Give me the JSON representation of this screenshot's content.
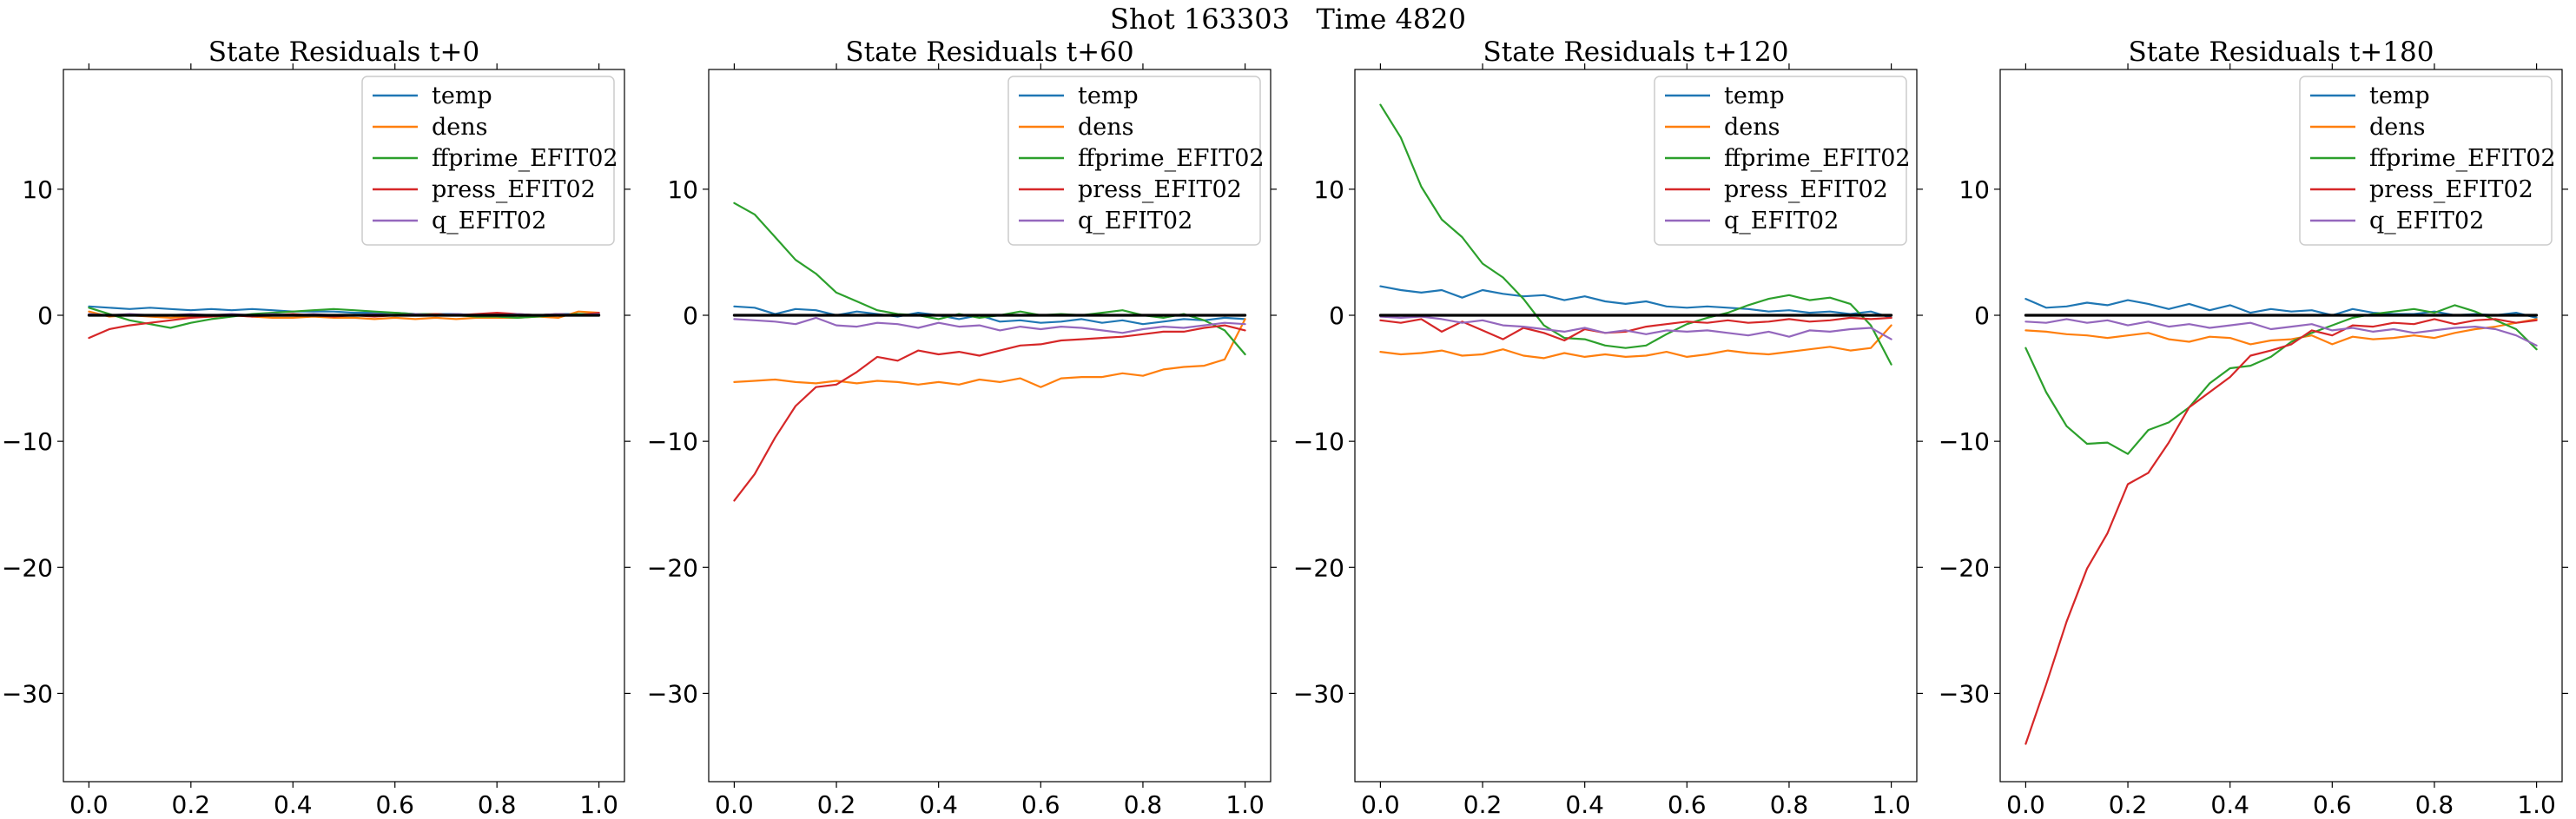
{
  "figure": {
    "suptitle": "Shot 163303   Time 4820"
  },
  "chart_data": [
    {
      "type": "line",
      "title": "State Residuals t+0",
      "xlim": [
        -0.05,
        1.05
      ],
      "ylim": [
        -37,
        19.5
      ],
      "xticks": [
        0.0,
        0.2,
        0.4,
        0.6,
        0.8,
        1.0
      ],
      "xtick_labels": [
        "0.0",
        "0.2",
        "0.4",
        "0.6",
        "0.8",
        "1.0"
      ],
      "yticks": [
        -30,
        -20,
        -10,
        0,
        10
      ],
      "ytick_labels": [
        "−30",
        "−20",
        "−10",
        "0",
        "10"
      ],
      "legend_position": "top-right",
      "x": [
        0.0,
        0.04,
        0.08,
        0.12,
        0.16,
        0.2,
        0.24,
        0.28,
        0.32,
        0.36,
        0.4,
        0.44,
        0.48,
        0.52,
        0.56,
        0.6,
        0.64,
        0.68,
        0.72,
        0.76,
        0.8,
        0.84,
        0.88,
        0.92,
        0.96,
        1.0
      ],
      "series": [
        {
          "name": "temp",
          "color": "#1f77b4",
          "values": [
            0.7,
            0.6,
            0.5,
            0.6,
            0.5,
            0.4,
            0.5,
            0.4,
            0.5,
            0.4,
            0.3,
            0.3,
            0.3,
            0.2,
            0.2,
            0.2,
            0.1,
            0.1,
            0.1,
            0.0,
            0.1,
            0.0,
            0.0,
            0.1,
            0.1,
            0.1
          ]
        },
        {
          "name": "dens",
          "color": "#ff7f0e",
          "values": [
            0.3,
            -0.1,
            0.0,
            -0.1,
            -0.2,
            -0.1,
            -0.1,
            0.0,
            -0.1,
            -0.2,
            -0.2,
            -0.1,
            -0.2,
            -0.2,
            -0.3,
            -0.2,
            -0.3,
            -0.2,
            -0.3,
            -0.2,
            -0.2,
            -0.2,
            -0.1,
            -0.2,
            0.3,
            0.2
          ]
        },
        {
          "name": "ffprime_EFIT02",
          "color": "#2ca02c",
          "values": [
            0.6,
            0.1,
            -0.4,
            -0.7,
            -1.0,
            -0.6,
            -0.3,
            -0.1,
            0.1,
            0.2,
            0.3,
            0.4,
            0.5,
            0.4,
            0.3,
            0.2,
            0.1,
            0.1,
            0.0,
            -0.1,
            -0.1,
            -0.2,
            -0.1,
            0.0,
            0.1,
            0.1
          ]
        },
        {
          "name": "press_EFIT02",
          "color": "#d62728",
          "values": [
            -1.8,
            -1.1,
            -0.8,
            -0.6,
            -0.4,
            -0.2,
            -0.1,
            0.0,
            -0.1,
            0.0,
            0.1,
            0.0,
            -0.1,
            0.0,
            -0.1,
            0.0,
            0.0,
            0.1,
            0.0,
            0.1,
            0.2,
            0.1,
            0.0,
            0.1,
            0.0,
            0.2
          ]
        },
        {
          "name": "q_EFIT02",
          "color": "#9467bd",
          "values": [
            0.1,
            0.0,
            0.1,
            0.0,
            0.0,
            0.1,
            0.0,
            0.1,
            0.0,
            0.1,
            0.0,
            0.1,
            0.0,
            0.0,
            0.1,
            0.0,
            0.1,
            0.0,
            0.1,
            0.0,
            0.0,
            0.1,
            0.0,
            0.1,
            0.0,
            0.1
          ]
        },
        {
          "name": "",
          "color": "#000000",
          "zero_line": true,
          "values": [
            0,
            0,
            0,
            0,
            0,
            0,
            0,
            0,
            0,
            0,
            0,
            0,
            0,
            0,
            0,
            0,
            0,
            0,
            0,
            0,
            0,
            0,
            0,
            0,
            0,
            0
          ]
        }
      ]
    },
    {
      "type": "line",
      "title": "State Residuals t+60",
      "xlim": [
        -0.05,
        1.05
      ],
      "ylim": [
        -37,
        19.5
      ],
      "xticks": [
        0.0,
        0.2,
        0.4,
        0.6,
        0.8,
        1.0
      ],
      "xtick_labels": [
        "0.0",
        "0.2",
        "0.4",
        "0.6",
        "0.8",
        "1.0"
      ],
      "yticks": [
        -30,
        -20,
        -10,
        0,
        10
      ],
      "ytick_labels": [
        "−30",
        "−20",
        "−10",
        "0",
        "10"
      ],
      "legend_position": "top-right",
      "x": [
        0.0,
        0.04,
        0.08,
        0.12,
        0.16,
        0.2,
        0.24,
        0.28,
        0.32,
        0.36,
        0.4,
        0.44,
        0.48,
        0.52,
        0.56,
        0.6,
        0.64,
        0.68,
        0.72,
        0.76,
        0.8,
        0.84,
        0.88,
        0.92,
        0.96,
        1.0
      ],
      "series": [
        {
          "name": "temp",
          "color": "#1f77b4",
          "values": [
            0.7,
            0.6,
            0.1,
            0.5,
            0.4,
            0.0,
            0.3,
            0.1,
            -0.1,
            0.2,
            0.0,
            -0.3,
            0.0,
            -0.5,
            -0.4,
            -0.6,
            -0.5,
            -0.3,
            -0.6,
            -0.4,
            -0.7,
            -0.5,
            -0.3,
            -0.4,
            -0.2,
            -0.3
          ]
        },
        {
          "name": "dens",
          "color": "#ff7f0e",
          "values": [
            -5.3,
            -5.2,
            -5.1,
            -5.3,
            -5.4,
            -5.2,
            -5.4,
            -5.2,
            -5.3,
            -5.5,
            -5.3,
            -5.5,
            -5.1,
            -5.3,
            -5.0,
            -5.7,
            -5.0,
            -4.9,
            -4.9,
            -4.6,
            -4.8,
            -4.3,
            -4.1,
            -4.0,
            -3.5,
            -0.3
          ]
        },
        {
          "name": "ffprime_EFIT02",
          "color": "#2ca02c",
          "values": [
            8.9,
            8.0,
            6.2,
            4.4,
            3.3,
            1.8,
            1.1,
            0.4,
            0.1,
            0.0,
            -0.3,
            0.1,
            -0.2,
            0.0,
            0.3,
            0.0,
            0.1,
            0.0,
            0.2,
            0.4,
            0.0,
            -0.2,
            0.1,
            -0.4,
            -1.2,
            -3.1
          ]
        },
        {
          "name": "press_EFIT02",
          "color": "#d62728",
          "values": [
            -14.7,
            -12.6,
            -9.7,
            -7.2,
            -5.7,
            -5.5,
            -4.5,
            -3.3,
            -3.6,
            -2.8,
            -3.1,
            -2.9,
            -3.2,
            -2.8,
            -2.4,
            -2.3,
            -2.0,
            -1.9,
            -1.8,
            -1.7,
            -1.5,
            -1.3,
            -1.3,
            -1.0,
            -0.8,
            -1.2
          ]
        },
        {
          "name": "q_EFIT02",
          "color": "#9467bd",
          "values": [
            -0.3,
            -0.4,
            -0.5,
            -0.7,
            -0.2,
            -0.8,
            -0.9,
            -0.6,
            -0.7,
            -1.0,
            -0.6,
            -0.9,
            -0.8,
            -1.2,
            -0.9,
            -1.1,
            -0.9,
            -1.0,
            -1.2,
            -1.4,
            -1.1,
            -0.9,
            -1.0,
            -0.8,
            -0.6,
            -0.7
          ]
        },
        {
          "name": "",
          "color": "#000000",
          "zero_line": true,
          "values": [
            0,
            0,
            0,
            0,
            0,
            0,
            0,
            0,
            0,
            0,
            0,
            0,
            0,
            0,
            0,
            0,
            0,
            0,
            0,
            0,
            0,
            0,
            0,
            0,
            0,
            0
          ]
        }
      ]
    },
    {
      "type": "line",
      "title": "State Residuals t+120",
      "xlim": [
        -0.05,
        1.05
      ],
      "ylim": [
        -37,
        19.5
      ],
      "xticks": [
        0.0,
        0.2,
        0.4,
        0.6,
        0.8,
        1.0
      ],
      "xtick_labels": [
        "0.0",
        "0.2",
        "0.4",
        "0.6",
        "0.8",
        "1.0"
      ],
      "yticks": [
        -30,
        -20,
        -10,
        0,
        10
      ],
      "ytick_labels": [
        "−30",
        "−20",
        "−10",
        "0",
        "10"
      ],
      "legend_position": "top-right",
      "x": [
        0.0,
        0.04,
        0.08,
        0.12,
        0.16,
        0.2,
        0.24,
        0.28,
        0.32,
        0.36,
        0.4,
        0.44,
        0.48,
        0.52,
        0.56,
        0.6,
        0.64,
        0.68,
        0.72,
        0.76,
        0.8,
        0.84,
        0.88,
        0.92,
        0.96,
        1.0
      ],
      "series": [
        {
          "name": "temp",
          "color": "#1f77b4",
          "values": [
            2.3,
            2.0,
            1.8,
            2.0,
            1.4,
            2.0,
            1.7,
            1.5,
            1.6,
            1.2,
            1.5,
            1.1,
            0.9,
            1.1,
            0.7,
            0.6,
            0.7,
            0.6,
            0.5,
            0.3,
            0.4,
            0.2,
            0.3,
            0.1,
            0.3,
            -0.2
          ]
        },
        {
          "name": "dens",
          "color": "#ff7f0e",
          "values": [
            -2.9,
            -3.1,
            -3.0,
            -2.8,
            -3.2,
            -3.1,
            -2.7,
            -3.2,
            -3.4,
            -3.0,
            -3.3,
            -3.1,
            -3.3,
            -3.2,
            -2.9,
            -3.3,
            -3.1,
            -2.8,
            -3.0,
            -3.1,
            -2.9,
            -2.7,
            -2.5,
            -2.8,
            -2.6,
            -0.8
          ]
        },
        {
          "name": "ffprime_EFIT02",
          "color": "#2ca02c",
          "values": [
            16.7,
            14.1,
            10.2,
            7.6,
            6.2,
            4.1,
            3.0,
            1.3,
            -0.8,
            -1.8,
            -1.9,
            -2.4,
            -2.6,
            -2.4,
            -1.5,
            -0.7,
            -0.2,
            0.2,
            0.8,
            1.3,
            1.6,
            1.2,
            1.4,
            0.9,
            -0.8,
            -3.9
          ]
        },
        {
          "name": "press_EFIT02",
          "color": "#d62728",
          "values": [
            -0.4,
            -0.6,
            -0.3,
            -1.3,
            -0.5,
            -1.2,
            -1.9,
            -1.0,
            -1.4,
            -2.0,
            -1.1,
            -1.4,
            -1.3,
            -0.9,
            -0.7,
            -0.5,
            -0.6,
            -0.4,
            -0.6,
            -0.5,
            -0.3,
            -0.5,
            -0.4,
            -0.2,
            -0.3,
            -0.2
          ]
        },
        {
          "name": "q_EFIT02",
          "color": "#9467bd",
          "values": [
            -0.1,
            -0.2,
            -0.1,
            -0.3,
            -0.6,
            -0.4,
            -0.8,
            -0.9,
            -1.1,
            -1.3,
            -1.0,
            -1.4,
            -1.2,
            -1.5,
            -1.2,
            -1.3,
            -1.2,
            -1.4,
            -1.6,
            -1.3,
            -1.7,
            -1.2,
            -1.3,
            -1.1,
            -1.0,
            -1.9
          ]
        },
        {
          "name": "",
          "color": "#000000",
          "zero_line": true,
          "values": [
            0,
            0,
            0,
            0,
            0,
            0,
            0,
            0,
            0,
            0,
            0,
            0,
            0,
            0,
            0,
            0,
            0,
            0,
            0,
            0,
            0,
            0,
            0,
            0,
            0,
            0
          ]
        }
      ]
    },
    {
      "type": "line",
      "title": "State Residuals t+180",
      "xlim": [
        -0.05,
        1.05
      ],
      "ylim": [
        -37,
        19.5
      ],
      "xticks": [
        0.0,
        0.2,
        0.4,
        0.6,
        0.8,
        1.0
      ],
      "xtick_labels": [
        "0.0",
        "0.2",
        "0.4",
        "0.6",
        "0.8",
        "1.0"
      ],
      "yticks": [
        -30,
        -20,
        -10,
        0,
        10
      ],
      "ytick_labels": [
        "−30",
        "−20",
        "−10",
        "0",
        "10"
      ],
      "legend_position": "top-right",
      "x": [
        0.0,
        0.04,
        0.08,
        0.12,
        0.16,
        0.2,
        0.24,
        0.28,
        0.32,
        0.36,
        0.4,
        0.44,
        0.48,
        0.52,
        0.56,
        0.6,
        0.64,
        0.68,
        0.72,
        0.76,
        0.8,
        0.84,
        0.88,
        0.92,
        0.96,
        1.0
      ],
      "series": [
        {
          "name": "temp",
          "color": "#1f77b4",
          "values": [
            1.3,
            0.6,
            0.7,
            1.0,
            0.8,
            1.2,
            0.9,
            0.5,
            0.9,
            0.4,
            0.8,
            0.2,
            0.5,
            0.3,
            0.4,
            0.0,
            0.5,
            0.2,
            0.1,
            0.1,
            0.3,
            0.0,
            0.1,
            0.0,
            0.2,
            -0.2
          ]
        },
        {
          "name": "dens",
          "color": "#ff7f0e",
          "values": [
            -1.2,
            -1.3,
            -1.5,
            -1.6,
            -1.8,
            -1.6,
            -1.4,
            -1.9,
            -2.1,
            -1.7,
            -1.8,
            -2.3,
            -2.0,
            -1.9,
            -1.6,
            -2.3,
            -1.7,
            -1.9,
            -1.8,
            -1.6,
            -1.8,
            -1.4,
            -1.1,
            -0.9,
            -0.6,
            -0.3
          ]
        },
        {
          "name": "ffprime_EFIT02",
          "color": "#2ca02c",
          "values": [
            -2.6,
            -6.1,
            -8.8,
            -10.2,
            -10.1,
            -11.0,
            -9.1,
            -8.5,
            -7.3,
            -5.4,
            -4.2,
            -4.0,
            -3.3,
            -2.1,
            -1.4,
            -0.8,
            -0.2,
            0.1,
            0.3,
            0.5,
            0.2,
            0.8,
            0.3,
            -0.4,
            -1.1,
            -2.7
          ]
        },
        {
          "name": "press_EFIT02",
          "color": "#d62728",
          "values": [
            -34.0,
            -29.3,
            -24.3,
            -20.1,
            -17.3,
            -13.4,
            -12.5,
            -10.1,
            -7.3,
            -6.1,
            -4.9,
            -3.2,
            -2.8,
            -2.3,
            -1.2,
            -1.6,
            -0.8,
            -0.9,
            -0.6,
            -0.7,
            -0.3,
            -0.7,
            -0.4,
            -0.3,
            -0.6,
            -0.4
          ]
        },
        {
          "name": "q_EFIT02",
          "color": "#9467bd",
          "values": [
            -0.5,
            -0.6,
            -0.3,
            -0.6,
            -0.4,
            -0.8,
            -0.5,
            -0.9,
            -0.7,
            -1.0,
            -0.8,
            -0.6,
            -1.1,
            -0.9,
            -0.7,
            -1.2,
            -1.0,
            -1.3,
            -1.1,
            -1.4,
            -1.2,
            -1.0,
            -0.9,
            -1.1,
            -1.6,
            -2.4
          ]
        },
        {
          "name": "",
          "color": "#000000",
          "zero_line": true,
          "values": [
            0,
            0,
            0,
            0,
            0,
            0,
            0,
            0,
            0,
            0,
            0,
            0,
            0,
            0,
            0,
            0,
            0,
            0,
            0,
            0,
            0,
            0,
            0,
            0,
            0,
            0
          ]
        }
      ]
    }
  ]
}
